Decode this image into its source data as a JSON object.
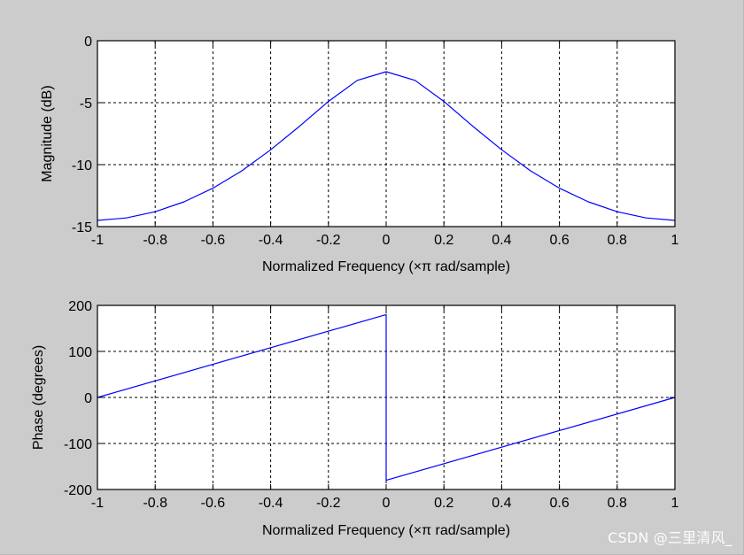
{
  "watermark": "CSDN @三里清风_",
  "chart_data": [
    {
      "type": "line",
      "title": "",
      "xlabel": "Normalized Frequency  (×π rad/sample)",
      "ylabel": "Magnitude (dB)",
      "xlim": [
        -1,
        1
      ],
      "ylim": [
        -15,
        0
      ],
      "xticks": [
        -1,
        -0.8,
        -0.6,
        -0.4,
        -0.2,
        0,
        0.2,
        0.4,
        0.6,
        0.8,
        1
      ],
      "xtick_labels": [
        "-1",
        "-0.8",
        "-0.6",
        "-0.4",
        "-0.2",
        "0",
        "0.2",
        "0.4",
        "0.6",
        "0.8",
        "1"
      ],
      "yticks": [
        -15,
        -10,
        -5,
        0
      ],
      "ytick_labels": [
        "-15",
        "-10",
        "-5",
        "0"
      ],
      "grid": true,
      "line_color": "#0000ff",
      "series": [
        {
          "x": [
            -1,
            -0.9,
            -0.8,
            -0.7,
            -0.6,
            -0.5,
            -0.4,
            -0.3,
            -0.2,
            -0.1,
            0,
            0.1,
            0.2,
            0.3,
            0.4,
            0.5,
            0.6,
            0.7,
            0.8,
            0.9,
            1
          ],
          "values": [
            -14.5,
            -14.3,
            -13.8,
            -13.0,
            -11.9,
            -10.5,
            -8.8,
            -6.9,
            -4.9,
            -3.2,
            -2.5,
            -3.2,
            -4.9,
            -6.9,
            -8.8,
            -10.5,
            -11.9,
            -13.0,
            -13.8,
            -14.3,
            -14.5
          ]
        }
      ]
    },
    {
      "type": "line",
      "title": "",
      "xlabel": "Normalized Frequency  (×π rad/sample)",
      "ylabel": "Phase (degrees)",
      "xlim": [
        -1,
        1
      ],
      "ylim": [
        -200,
        200
      ],
      "xticks": [
        -1,
        -0.8,
        -0.6,
        -0.4,
        -0.2,
        0,
        0.2,
        0.4,
        0.6,
        0.8,
        1
      ],
      "xtick_labels": [
        "-1",
        "-0.8",
        "-0.6",
        "-0.4",
        "-0.2",
        "0",
        "0.2",
        "0.4",
        "0.6",
        "0.8",
        "1"
      ],
      "yticks": [
        -200,
        -100,
        0,
        100,
        200
      ],
      "ytick_labels": [
        "-200",
        "-100",
        "0",
        "100",
        "200"
      ],
      "grid": true,
      "line_color": "#0000ff",
      "series": [
        {
          "x": [
            -1,
            0,
            0,
            1
          ],
          "values": [
            0,
            180,
            -180,
            0
          ]
        }
      ]
    }
  ]
}
